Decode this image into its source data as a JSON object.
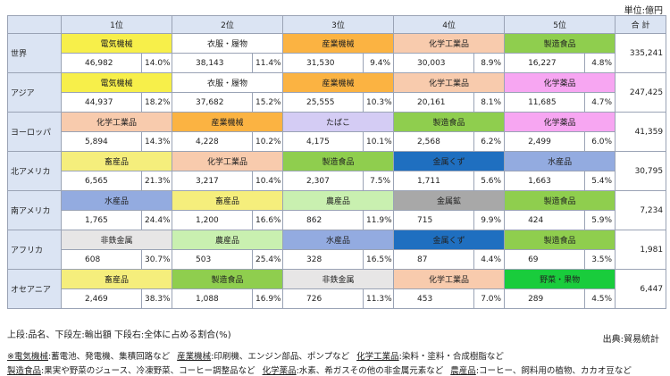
{
  "header": {
    "unit": "単位:億円"
  },
  "table": {
    "columns": [
      "1位",
      "2位",
      "3位",
      "4位",
      "5位",
      "合 計"
    ],
    "rows": [
      {
        "region": "世界",
        "total": "335,241",
        "cells": [
          {
            "name": "電気機械",
            "value": "46,982",
            "share": "14.0%",
            "color": "#f7ef4a"
          },
          {
            "name": "衣服・履物",
            "value": "38,143",
            "share": "11.4%",
            "color": "#ffffff"
          },
          {
            "name": "産業機械",
            "value": "31,530",
            "share": "9.4%",
            "color": "#fbb342"
          },
          {
            "name": "化学工業品",
            "value": "30,003",
            "share": "8.9%",
            "color": "#f8cbad"
          },
          {
            "name": "製造食品",
            "value": "16,227",
            "share": "4.8%",
            "color": "#8fce4e"
          }
        ]
      },
      {
        "region": "アジア",
        "total": "247,425",
        "cells": [
          {
            "name": "電気機械",
            "value": "44,937",
            "share": "18.2%",
            "color": "#f7ef4a"
          },
          {
            "name": "衣服・履物",
            "value": "37,682",
            "share": "15.2%",
            "color": "#ffffff"
          },
          {
            "name": "産業機械",
            "value": "25,555",
            "share": "10.3%",
            "color": "#fbb342"
          },
          {
            "name": "化学工業品",
            "value": "20,161",
            "share": "8.1%",
            "color": "#f8cbad"
          },
          {
            "name": "化学薬品",
            "value": "11,685",
            "share": "4.7%",
            "color": "#f7a6f2"
          }
        ]
      },
      {
        "region": "ヨーロッパ",
        "total": "41,359",
        "cells": [
          {
            "name": "化学工業品",
            "value": "5,894",
            "share": "14.3%",
            "color": "#f8cbad"
          },
          {
            "name": "産業機械",
            "value": "4,228",
            "share": "10.2%",
            "color": "#fbb342"
          },
          {
            "name": "たばこ",
            "value": "4,175",
            "share": "10.1%",
            "color": "#d4ccf4"
          },
          {
            "name": "製造食品",
            "value": "2,568",
            "share": "6.2%",
            "color": "#8fce4e"
          },
          {
            "name": "化学薬品",
            "value": "2,499",
            "share": "6.0%",
            "color": "#f7a6f2"
          }
        ]
      },
      {
        "region": "北アメリカ",
        "total": "30,795",
        "cells": [
          {
            "name": "畜産品",
            "value": "6,565",
            "share": "21.3%",
            "color": "#f5ee7c"
          },
          {
            "name": "化学工業品",
            "value": "3,217",
            "share": "10.4%",
            "color": "#f8cbad"
          },
          {
            "name": "製造食品",
            "value": "2,307",
            "share": "7.5%",
            "color": "#8fce4e"
          },
          {
            "name": "金属くず",
            "value": "1,711",
            "share": "5.6%",
            "color": "#1f6fc0"
          },
          {
            "name": "水産品",
            "value": "1,663",
            "share": "5.4%",
            "color": "#93abe0"
          }
        ]
      },
      {
        "region": "南アメリカ",
        "total": "7,234",
        "cells": [
          {
            "name": "水産品",
            "value": "1,765",
            "share": "24.4%",
            "color": "#93abe0"
          },
          {
            "name": "畜産品",
            "value": "1,200",
            "share": "16.6%",
            "color": "#f5ee7c"
          },
          {
            "name": "農産品",
            "value": "862",
            "share": "11.9%",
            "color": "#c9f0b0"
          },
          {
            "name": "金属鉱",
            "value": "715",
            "share": "9.9%",
            "color": "#a8a8a8"
          },
          {
            "name": "製造食品",
            "value": "424",
            "share": "5.9%",
            "color": "#8fce4e"
          }
        ]
      },
      {
        "region": "アフリカ",
        "total": "1,981",
        "cells": [
          {
            "name": "非鉄金属",
            "value": "608",
            "share": "30.7%",
            "color": "#e7e6e6"
          },
          {
            "name": "農産品",
            "value": "503",
            "share": "25.4%",
            "color": "#c9f0b0"
          },
          {
            "name": "水産品",
            "value": "328",
            "share": "16.5%",
            "color": "#93abe0"
          },
          {
            "name": "金属くず",
            "value": "87",
            "share": "4.4%",
            "color": "#1f6fc0"
          },
          {
            "name": "製造食品",
            "value": "69",
            "share": "3.5%",
            "color": "#8fce4e"
          }
        ]
      },
      {
        "region": "オセアニア",
        "total": "6,447",
        "cells": [
          {
            "name": "畜産品",
            "value": "2,469",
            "share": "38.3%",
            "color": "#f5ee7c"
          },
          {
            "name": "製造食品",
            "value": "1,088",
            "share": "16.9%",
            "color": "#8fce4e"
          },
          {
            "name": "非鉄金属",
            "value": "726",
            "share": "11.3%",
            "color": "#e7e6e6"
          },
          {
            "name": "化学工業品",
            "value": "453",
            "share": "7.0%",
            "color": "#f8cbad"
          },
          {
            "name": "野菜・果物",
            "value": "289",
            "share": "4.5%",
            "color": "#19cc3c"
          }
        ]
      }
    ]
  },
  "footer": {
    "legend": "上段:品名、下段左:輸出額 下段右:全体に占める割合(%)",
    "source": "出典:貿易統計",
    "notes": [
      [
        {
          "term": "※電気機械",
          "desc": ":蓄電池、発電機、集積回路など"
        },
        {
          "term": "産業機械",
          "desc": ":印刷機、エンジン部品、ポンプなど"
        },
        {
          "term": "化学工業品",
          "desc": ":染料・塗料・合成樹脂など"
        }
      ],
      [
        {
          "term": "製造食品",
          "desc": ":果実や野菜のジュース、冷凍野菜、コーヒー調整品など"
        },
        {
          "term": "化学薬品",
          "desc": ":水素、希ガスその他の非金属元素など"
        },
        {
          "term": "農産品",
          "desc": ":コーヒー、飼料用の植物、カカオ豆など"
        }
      ]
    ]
  }
}
